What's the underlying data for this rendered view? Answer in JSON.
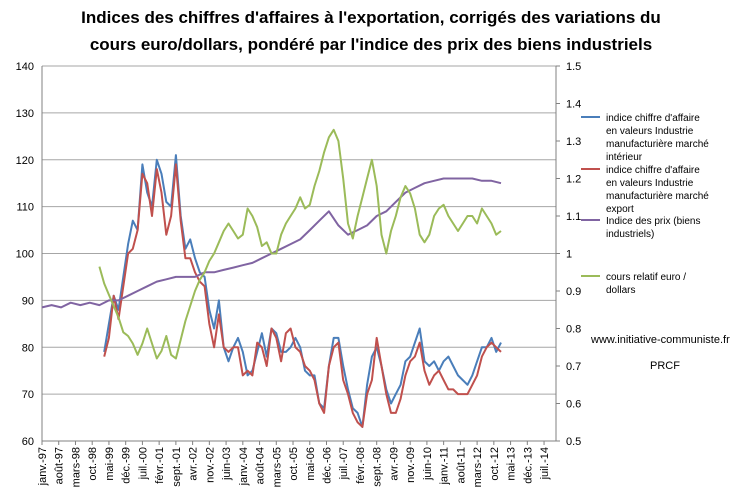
{
  "chart_data": {
    "type": "line",
    "title_lines": [
      "Indices des chiffres d'affaires à l'exportation, corrigés des variations du",
      "cours euro/dollars, pondéré par l'indice des prix des biens industriels"
    ],
    "x_tick_labels": [
      "janv.-97",
      "août-97",
      "mars-98",
      "oct.-98",
      "mai-99",
      "déc.-99",
      "juil.-00",
      "févr.-01",
      "sept.-01",
      "avr.-02",
      "nov.-02",
      "juin-03",
      "janv.-04",
      "août-04",
      "mars-05",
      "oct.-05",
      "mai-06",
      "déc.-06",
      "juil.-07",
      "févr.-08",
      "sept.-08",
      "avr.-09",
      "nov.-09",
      "juin-10",
      "janv.-11",
      "août-11",
      "mars-12",
      "oct.-12",
      "mai-13",
      "déc.-13",
      "juil.-14"
    ],
    "x_range_months": [
      0,
      215
    ],
    "y_left": {
      "min": 60,
      "max": 140,
      "step": 10,
      "ticks": [
        "60",
        "70",
        "80",
        "90",
        "100",
        "110",
        "120",
        "130",
        "140"
      ]
    },
    "y_right": {
      "min": 0.5,
      "max": 1.5,
      "step": 0.1,
      "ticks": [
        "0.5",
        "0.6",
        "0.7",
        "0.8",
        "0.9",
        "1",
        "1.1",
        "1.2",
        "1.3",
        "1.4",
        "1.5"
      ]
    },
    "grid": "horizontal",
    "legend_position": "right",
    "series": [
      {
        "name": "indice chiffre d'affaire en valeurs Industrie manufacturière marché intérieur",
        "legend_lines": [
          "indice chiffre d'affaire",
          "en valeurs Industrie",
          "manufacturière marché",
          "intérieur"
        ],
        "axis": "left",
        "color": "#4a7eba",
        "points": [
          [
            26,
            79
          ],
          [
            28,
            85
          ],
          [
            30,
            91
          ],
          [
            32,
            88
          ],
          [
            34,
            95
          ],
          [
            36,
            102
          ],
          [
            38,
            107
          ],
          [
            40,
            105
          ],
          [
            42,
            119
          ],
          [
            44,
            113
          ],
          [
            46,
            110
          ],
          [
            48,
            120
          ],
          [
            50,
            117
          ],
          [
            52,
            111
          ],
          [
            54,
            110
          ],
          [
            56,
            121
          ],
          [
            58,
            108
          ],
          [
            60,
            101
          ],
          [
            62,
            103
          ],
          [
            64,
            99
          ],
          [
            66,
            96
          ],
          [
            68,
            95
          ],
          [
            70,
            88
          ],
          [
            72,
            84
          ],
          [
            74,
            90
          ],
          [
            76,
            80
          ],
          [
            78,
            77
          ],
          [
            80,
            80
          ],
          [
            82,
            82
          ],
          [
            84,
            79
          ],
          [
            86,
            74
          ],
          [
            88,
            75
          ],
          [
            90,
            79
          ],
          [
            92,
            83
          ],
          [
            94,
            78
          ],
          [
            96,
            84
          ],
          [
            98,
            83
          ],
          [
            100,
            79
          ],
          [
            102,
            79
          ],
          [
            104,
            80
          ],
          [
            106,
            82
          ],
          [
            108,
            80
          ],
          [
            110,
            75
          ],
          [
            112,
            74
          ],
          [
            114,
            74
          ],
          [
            116,
            68
          ],
          [
            118,
            67
          ],
          [
            120,
            76
          ],
          [
            122,
            82
          ],
          [
            124,
            82
          ],
          [
            126,
            76
          ],
          [
            128,
            71
          ],
          [
            130,
            67
          ],
          [
            132,
            66
          ],
          [
            134,
            63
          ],
          [
            136,
            72
          ],
          [
            138,
            78
          ],
          [
            140,
            80
          ],
          [
            142,
            76
          ],
          [
            144,
            71
          ],
          [
            146,
            68
          ],
          [
            148,
            70
          ],
          [
            150,
            72
          ],
          [
            152,
            77
          ],
          [
            154,
            78
          ],
          [
            156,
            81
          ],
          [
            158,
            84
          ],
          [
            160,
            77
          ],
          [
            162,
            76
          ],
          [
            164,
            77
          ],
          [
            166,
            75
          ],
          [
            168,
            77
          ],
          [
            170,
            78
          ],
          [
            172,
            76
          ],
          [
            174,
            74
          ],
          [
            176,
            73
          ],
          [
            178,
            72
          ],
          [
            180,
            74
          ],
          [
            182,
            77
          ],
          [
            184,
            80
          ],
          [
            186,
            80
          ],
          [
            188,
            82
          ],
          [
            190,
            79
          ],
          [
            192,
            81
          ]
        ]
      },
      {
        "name": "indice chiffre d'affaire en valeurs Industrie manufacturière marché export",
        "legend_lines": [
          "indice chiffre d'affaire",
          "en valeurs Industrie",
          "manufacturière marché",
          "export"
        ],
        "axis": "left",
        "color": "#c0504d",
        "points": [
          [
            26,
            78
          ],
          [
            28,
            82
          ],
          [
            30,
            91
          ],
          [
            32,
            86
          ],
          [
            34,
            93
          ],
          [
            36,
            100
          ],
          [
            38,
            101
          ],
          [
            40,
            105
          ],
          [
            42,
            117
          ],
          [
            44,
            115
          ],
          [
            46,
            108
          ],
          [
            48,
            118
          ],
          [
            50,
            113
          ],
          [
            52,
            104
          ],
          [
            54,
            108
          ],
          [
            56,
            119
          ],
          [
            58,
            107
          ],
          [
            60,
            99
          ],
          [
            62,
            99
          ],
          [
            64,
            96
          ],
          [
            66,
            94
          ],
          [
            68,
            93
          ],
          [
            70,
            85
          ],
          [
            72,
            80
          ],
          [
            74,
            87
          ],
          [
            76,
            80
          ],
          [
            78,
            79
          ],
          [
            80,
            80
          ],
          [
            82,
            80
          ],
          [
            84,
            74
          ],
          [
            86,
            75
          ],
          [
            88,
            74
          ],
          [
            90,
            81
          ],
          [
            92,
            80
          ],
          [
            94,
            76
          ],
          [
            96,
            84
          ],
          [
            98,
            82
          ],
          [
            100,
            77
          ],
          [
            102,
            83
          ],
          [
            104,
            84
          ],
          [
            106,
            80
          ],
          [
            108,
            79
          ],
          [
            110,
            76
          ],
          [
            112,
            75
          ],
          [
            114,
            73
          ],
          [
            116,
            68
          ],
          [
            118,
            66
          ],
          [
            120,
            76
          ],
          [
            122,
            80
          ],
          [
            124,
            81
          ],
          [
            126,
            73
          ],
          [
            128,
            70
          ],
          [
            130,
            66
          ],
          [
            132,
            64
          ],
          [
            134,
            63
          ],
          [
            136,
            70
          ],
          [
            138,
            73
          ],
          [
            140,
            82
          ],
          [
            142,
            76
          ],
          [
            144,
            70
          ],
          [
            146,
            66
          ],
          [
            148,
            66
          ],
          [
            150,
            69
          ],
          [
            152,
            74
          ],
          [
            154,
            77
          ],
          [
            156,
            78
          ],
          [
            158,
            81
          ],
          [
            160,
            75
          ],
          [
            162,
            72
          ],
          [
            164,
            74
          ],
          [
            166,
            75
          ],
          [
            168,
            73
          ],
          [
            170,
            71
          ],
          [
            172,
            71
          ],
          [
            174,
            70
          ],
          [
            176,
            70
          ],
          [
            178,
            70
          ],
          [
            180,
            72
          ],
          [
            182,
            74
          ],
          [
            184,
            78
          ],
          [
            186,
            80
          ],
          [
            188,
            81
          ],
          [
            190,
            80
          ],
          [
            192,
            79
          ]
        ]
      },
      {
        "name": "Indice des prix (biens industriels)",
        "legend_lines": [
          "Indice des prix (biens",
          "industriels)"
        ],
        "axis": "left",
        "color": "#8064a2",
        "points": [
          [
            0,
            88.5
          ],
          [
            4,
            89
          ],
          [
            8,
            88.5
          ],
          [
            12,
            89.5
          ],
          [
            16,
            89
          ],
          [
            20,
            89.5
          ],
          [
            24,
            89
          ],
          [
            28,
            90
          ],
          [
            32,
            90
          ],
          [
            36,
            91
          ],
          [
            40,
            92
          ],
          [
            44,
            93
          ],
          [
            48,
            94
          ],
          [
            52,
            94.5
          ],
          [
            56,
            95
          ],
          [
            60,
            95
          ],
          [
            64,
            95
          ],
          [
            68,
            96
          ],
          [
            72,
            96
          ],
          [
            76,
            96.5
          ],
          [
            80,
            97
          ],
          [
            84,
            97.5
          ],
          [
            88,
            98
          ],
          [
            92,
            99
          ],
          [
            96,
            100
          ],
          [
            100,
            101
          ],
          [
            104,
            102
          ],
          [
            108,
            103
          ],
          [
            112,
            105
          ],
          [
            116,
            107
          ],
          [
            120,
            109
          ],
          [
            124,
            106
          ],
          [
            128,
            104
          ],
          [
            132,
            105
          ],
          [
            136,
            106
          ],
          [
            140,
            108
          ],
          [
            144,
            109
          ],
          [
            148,
            111
          ],
          [
            152,
            113
          ],
          [
            156,
            114
          ],
          [
            160,
            115
          ],
          [
            164,
            115.5
          ],
          [
            168,
            116
          ],
          [
            172,
            116
          ],
          [
            176,
            116
          ],
          [
            180,
            116
          ],
          [
            184,
            115.5
          ],
          [
            188,
            115.5
          ],
          [
            192,
            115
          ]
        ]
      },
      {
        "name": "cours relatif euro / dollars",
        "legend_lines": [
          "cours relatif euro /",
          "dollars"
        ],
        "axis": "right",
        "color": "#9bbb59",
        "points": [
          [
            24,
            0.965
          ],
          [
            26,
            0.92
          ],
          [
            28,
            0.89
          ],
          [
            30,
            0.86
          ],
          [
            32,
            0.83
          ],
          [
            34,
            0.79
          ],
          [
            36,
            0.78
          ],
          [
            38,
            0.76
          ],
          [
            40,
            0.73
          ],
          [
            42,
            0.76
          ],
          [
            44,
            0.8
          ],
          [
            46,
            0.76
          ],
          [
            48,
            0.72
          ],
          [
            50,
            0.74
          ],
          [
            52,
            0.78
          ],
          [
            54,
            0.73
          ],
          [
            56,
            0.72
          ],
          [
            58,
            0.77
          ],
          [
            60,
            0.82
          ],
          [
            62,
            0.86
          ],
          [
            64,
            0.9
          ],
          [
            66,
            0.93
          ],
          [
            68,
            0.95
          ],
          [
            70,
            0.98
          ],
          [
            72,
            1.0
          ],
          [
            74,
            1.03
          ],
          [
            76,
            1.06
          ],
          [
            78,
            1.08
          ],
          [
            80,
            1.06
          ],
          [
            82,
            1.04
          ],
          [
            84,
            1.05
          ],
          [
            86,
            1.12
          ],
          [
            88,
            1.1
          ],
          [
            90,
            1.07
          ],
          [
            92,
            1.02
          ],
          [
            94,
            1.03
          ],
          [
            96,
            1.0
          ],
          [
            98,
            1.0
          ],
          [
            100,
            1.05
          ],
          [
            102,
            1.08
          ],
          [
            104,
            1.1
          ],
          [
            106,
            1.12
          ],
          [
            108,
            1.15
          ],
          [
            110,
            1.12
          ],
          [
            112,
            1.13
          ],
          [
            114,
            1.18
          ],
          [
            116,
            1.22
          ],
          [
            118,
            1.27
          ],
          [
            120,
            1.31
          ],
          [
            122,
            1.33
          ],
          [
            124,
            1.3
          ],
          [
            126,
            1.2
          ],
          [
            128,
            1.08
          ],
          [
            130,
            1.04
          ],
          [
            132,
            1.1
          ],
          [
            134,
            1.15
          ],
          [
            136,
            1.2
          ],
          [
            138,
            1.25
          ],
          [
            140,
            1.18
          ],
          [
            142,
            1.05
          ],
          [
            144,
            1.0
          ],
          [
            146,
            1.06
          ],
          [
            148,
            1.1
          ],
          [
            150,
            1.15
          ],
          [
            152,
            1.18
          ],
          [
            154,
            1.16
          ],
          [
            156,
            1.12
          ],
          [
            158,
            1.05
          ],
          [
            160,
            1.03
          ],
          [
            162,
            1.05
          ],
          [
            164,
            1.1
          ],
          [
            166,
            1.12
          ],
          [
            168,
            1.13
          ],
          [
            170,
            1.1
          ],
          [
            172,
            1.08
          ],
          [
            174,
            1.06
          ],
          [
            176,
            1.08
          ],
          [
            178,
            1.1
          ],
          [
            180,
            1.1
          ],
          [
            182,
            1.08
          ],
          [
            184,
            1.12
          ],
          [
            186,
            1.1
          ],
          [
            188,
            1.08
          ],
          [
            190,
            1.05
          ],
          [
            192,
            1.06
          ]
        ]
      }
    ]
  },
  "site_url": "www.initiative-communiste.fr",
  "site_tag": "PRCF"
}
